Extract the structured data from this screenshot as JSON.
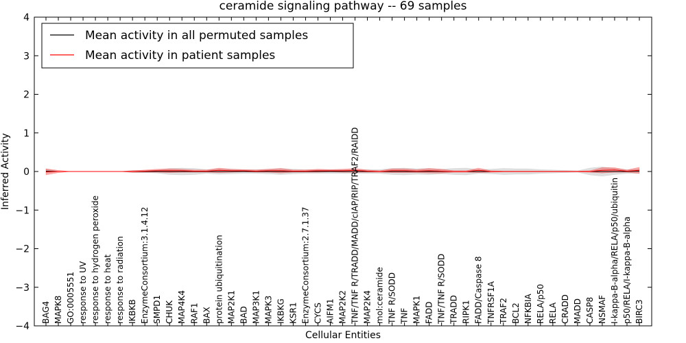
{
  "chart_data": {
    "type": "line",
    "title": "ceramide signaling pathway -- 69 samples",
    "xlabel": "Cellular Entities",
    "ylabel": "Inferred Activity",
    "ylim": [
      -4,
      4
    ],
    "yticks": [
      -4,
      -3,
      -2,
      -1,
      0,
      1,
      2,
      3,
      4
    ],
    "ytick_labels": [
      "−4",
      "−3",
      "−2",
      "−1",
      "0",
      "1",
      "2",
      "3",
      "4"
    ],
    "grid": false,
    "legend_position": "top-left",
    "categories": [
      "BAG4",
      "MAPK8",
      "GO:0005551",
      "response to UV",
      "response to hydrogen peroxide",
      "response to heat",
      "response to radiation",
      "IKBKB",
      "EnzymeConsortium:3.1.4.12",
      "SMPD1",
      "CHUK",
      "MAP4K4",
      "RAF1",
      "BAX",
      "protein ubiquitination",
      "MAP2K1",
      "BAD",
      "MAP3K1",
      "MAPK3",
      "IKBKG",
      "KSR1",
      "EnzymeConsortium:2.7.1.37",
      "CYCS",
      "AIFM1",
      "MAP2K2",
      "TNF/TNF R/TRADD/MADD/cIAP/RIP/TRAF2/RAIDD",
      "MAP2K4",
      "mol:ceramide",
      "TNF R/SODD",
      "TNF",
      "MAPK1",
      "FADD",
      "TNF/TNF R/SODD",
      "TRADD",
      "RIPK1",
      "FADD/Caspase 8",
      "TNFRSF1A",
      "TRAF2",
      "BCL2",
      "NFKBIA",
      "RELA/p50",
      "RELA",
      "CRADD",
      "MADD",
      "CASP8",
      "NSMAF",
      "I-kappa-B-alpha/RELA/p50/ubiquitin",
      "p50/RELA/I-kappa-B-alpha",
      "BIRC3"
    ],
    "series": [
      {
        "name": "Mean activity in all permuted samples",
        "color": "#000000",
        "values": [
          0.01,
          0.0,
          0.0,
          0.0,
          0.0,
          0.0,
          0.0,
          0.0,
          0.0,
          0.0,
          0.0,
          0.0,
          0.0,
          0.0,
          0.0,
          0.0,
          0.0,
          0.0,
          0.0,
          0.0,
          0.0,
          0.0,
          0.0,
          0.0,
          0.0,
          0.0,
          0.0,
          0.0,
          0.0,
          0.0,
          0.0,
          0.0,
          0.0,
          0.0,
          0.0,
          0.0,
          0.0,
          0.0,
          0.0,
          0.0,
          0.0,
          0.0,
          0.0,
          0.0,
          0.0,
          0.0,
          0.0,
          0.0,
          0.01
        ],
        "band": [
          0.06,
          0.0,
          0.0,
          0.0,
          0.0,
          0.0,
          0.0,
          0.03,
          0.03,
          0.04,
          0.08,
          0.09,
          0.08,
          0.05,
          0.07,
          0.06,
          0.05,
          0.05,
          0.06,
          0.08,
          0.06,
          0.05,
          0.05,
          0.05,
          0.05,
          0.05,
          0.05,
          0.05,
          0.08,
          0.09,
          0.07,
          0.08,
          0.06,
          0.08,
          0.09,
          0.05,
          0.06,
          0.08,
          0.07,
          0.07,
          0.05,
          0.04,
          0.03,
          0.02,
          0.09,
          0.12,
          0.08,
          0.05,
          0.06
        ]
      },
      {
        "name": "Mean activity in patient samples",
        "color": "#ff0000",
        "values": [
          -0.01,
          0.0,
          0.0,
          0.0,
          0.0,
          0.0,
          0.0,
          0.0,
          0.01,
          0.02,
          0.02,
          0.02,
          0.01,
          0.01,
          0.03,
          0.02,
          0.02,
          0.01,
          0.02,
          0.02,
          0.01,
          0.01,
          0.02,
          0.02,
          0.02,
          0.03,
          0.01,
          0.0,
          0.02,
          0.02,
          0.01,
          0.02,
          0.01,
          0.0,
          0.0,
          0.03,
          0.0,
          0.0,
          0.0,
          0.0,
          0.0,
          0.0,
          0.0,
          0.0,
          0.0,
          0.03,
          0.04,
          0.01,
          0.03
        ],
        "band": [
          0.08,
          0.03,
          0.0,
          0.0,
          0.0,
          0.0,
          0.0,
          0.02,
          0.03,
          0.04,
          0.05,
          0.04,
          0.03,
          0.03,
          0.06,
          0.04,
          0.03,
          0.03,
          0.04,
          0.06,
          0.03,
          0.03,
          0.04,
          0.03,
          0.04,
          0.05,
          0.03,
          0.02,
          0.05,
          0.05,
          0.04,
          0.06,
          0.05,
          0.02,
          0.02,
          0.06,
          0.02,
          0.01,
          0.01,
          0.01,
          0.01,
          0.01,
          0.01,
          0.01,
          0.02,
          0.07,
          0.06,
          0.03,
          0.08
        ]
      }
    ]
  }
}
